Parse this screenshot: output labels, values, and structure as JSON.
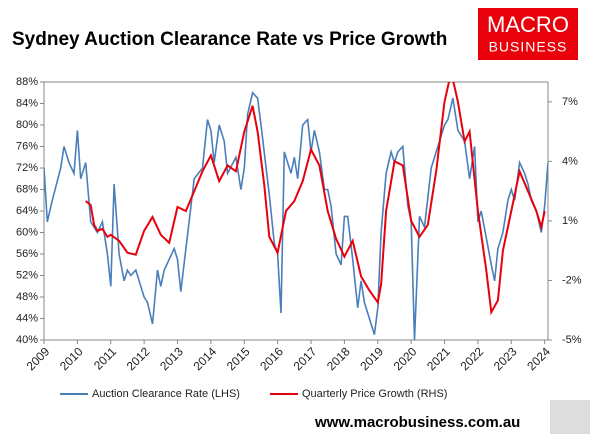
{
  "chart_data": {
    "type": "line",
    "title": "Sydney Auction Clearance Rate vs Price Growth",
    "logo": [
      "MACRO",
      "BUSINESS"
    ],
    "footer": "www.macrobusiness.com.au",
    "xlim": [
      2009,
      2024.1
    ],
    "xticks": [
      2009,
      2010,
      2011,
      2012,
      2013,
      2014,
      2015,
      2016,
      2017,
      2018,
      2019,
      2020,
      2021,
      2022,
      2023,
      2024
    ],
    "ylim": [
      40,
      88
    ],
    "yticks": [
      {
        "value": 40,
        "label": "40%"
      },
      {
        "value": 44,
        "label": "44%"
      },
      {
        "value": 48,
        "label": "48%"
      },
      {
        "value": 52,
        "label": "52%"
      },
      {
        "value": 56,
        "label": "56%"
      },
      {
        "value": 60,
        "label": "60%"
      },
      {
        "value": 64,
        "label": "64%"
      },
      {
        "value": 68,
        "label": "68%"
      },
      {
        "value": 72,
        "label": "72%"
      },
      {
        "value": 76,
        "label": "76%"
      },
      {
        "value": 80,
        "label": "80%"
      },
      {
        "value": 84,
        "label": "84%"
      },
      {
        "value": 88,
        "label": "88%"
      }
    ],
    "y2lim": [
      -5,
      8
    ],
    "y2ticks": [
      {
        "value": -5,
        "label": "-5%"
      },
      {
        "value": -2,
        "label": "-2%"
      },
      {
        "value": 1,
        "label": "1%"
      },
      {
        "value": 4,
        "label": "4%"
      },
      {
        "value": 7,
        "label": "7%"
      }
    ],
    "legend": "bottom",
    "series": [
      {
        "name": "Auction Clearance Rate (LHS)",
        "color": "#4a7ebb",
        "axis": "y",
        "x": [
          2009.0,
          2009.1,
          2009.25,
          2009.5,
          2009.6,
          2009.75,
          2009.9,
          2010.0,
          2010.1,
          2010.25,
          2010.4,
          2010.6,
          2010.75,
          2010.9,
          2011.0,
          2011.1,
          2011.25,
          2011.4,
          2011.5,
          2011.6,
          2011.75,
          2011.9,
          2012.0,
          2012.1,
          2012.25,
          2012.4,
          2012.5,
          2012.6,
          2012.75,
          2012.9,
          2013.0,
          2013.1,
          2013.25,
          2013.5,
          2013.75,
          2013.9,
          2014.0,
          2014.1,
          2014.25,
          2014.4,
          2014.5,
          2014.75,
          2014.9,
          2015.0,
          2015.1,
          2015.25,
          2015.4,
          2015.5,
          2015.75,
          2015.9,
          2016.0,
          2016.1,
          2016.2,
          2016.4,
          2016.5,
          2016.6,
          2016.75,
          2016.9,
          2017.0,
          2017.1,
          2017.25,
          2017.4,
          2017.5,
          2017.6,
          2017.75,
          2017.9,
          2018.0,
          2018.1,
          2018.25,
          2018.4,
          2018.5,
          2018.6,
          2018.75,
          2018.9,
          2019.0,
          2019.1,
          2019.25,
          2019.4,
          2019.5,
          2019.6,
          2019.75,
          2019.9,
          2020.0,
          2020.1,
          2020.25,
          2020.4,
          2020.6,
          2020.75,
          2020.9,
          2021.0,
          2021.1,
          2021.25,
          2021.4,
          2021.6,
          2021.75,
          2021.9,
          2022.0,
          2022.1,
          2022.25,
          2022.4,
          2022.5,
          2022.6,
          2022.75,
          2022.9,
          2023.0,
          2023.1,
          2023.25,
          2023.4,
          2023.5,
          2023.6,
          2023.75,
          2023.9,
          2024.0,
          2024.1
        ],
        "values": [
          72,
          62,
          66,
          72,
          76,
          73,
          71,
          79,
          70,
          73,
          62,
          60,
          62,
          56,
          50,
          69,
          56,
          51,
          53,
          52,
          53,
          50,
          48,
          47,
          43,
          53,
          50,
          53,
          55,
          57,
          55,
          49,
          57,
          70,
          72,
          81,
          79,
          73,
          80,
          77,
          71,
          74,
          68,
          72,
          82,
          86,
          85,
          80,
          67,
          58,
          56,
          45,
          75,
          71,
          74,
          70,
          80,
          81,
          75,
          79,
          75,
          68,
          68,
          65,
          56,
          54,
          63,
          63,
          55,
          46,
          51,
          47,
          44,
          41,
          46,
          60,
          71,
          75,
          73,
          75,
          76,
          65,
          62,
          40,
          63,
          61,
          72,
          75,
          78,
          80,
          81,
          85,
          79,
          77,
          70,
          76,
          62,
          64,
          59,
          54,
          51,
          57,
          60,
          66,
          68,
          66,
          73,
          71,
          69,
          66,
          64,
          60,
          65,
          73
        ]
      },
      {
        "name": "Quarterly Price Growth (RHS)",
        "color": "#e8000b",
        "axis": "y2",
        "x": [
          2010.25,
          2010.4,
          2010.5,
          2010.6,
          2010.75,
          2010.9,
          2011.0,
          2011.25,
          2011.5,
          2011.75,
          2012.0,
          2012.25,
          2012.5,
          2012.75,
          2013.0,
          2013.25,
          2013.5,
          2013.75,
          2014.0,
          2014.25,
          2014.5,
          2014.75,
          2015.0,
          2015.25,
          2015.4,
          2015.6,
          2015.75,
          2016.0,
          2016.25,
          2016.5,
          2016.75,
          2017.0,
          2017.25,
          2017.5,
          2017.75,
          2018.0,
          2018.25,
          2018.5,
          2018.75,
          2019.0,
          2019.1,
          2019.25,
          2019.5,
          2019.75,
          2020.0,
          2020.25,
          2020.5,
          2020.75,
          2021.0,
          2021.2,
          2021.4,
          2021.6,
          2021.75,
          2022.0,
          2022.25,
          2022.4,
          2022.6,
          2022.75,
          2023.0,
          2023.25,
          2023.5,
          2023.75,
          2023.9,
          2024.0
        ],
        "values": [
          2.0,
          1.8,
          0.8,
          0.5,
          0.6,
          0.2,
          0.3,
          0.0,
          -0.6,
          -0.7,
          0.5,
          1.2,
          0.3,
          -0.1,
          1.7,
          1.5,
          2.5,
          3.5,
          4.3,
          3.0,
          3.8,
          3.5,
          5.5,
          6.8,
          5.5,
          2.8,
          0.2,
          -0.6,
          1.5,
          2.0,
          3.0,
          4.6,
          3.8,
          1.5,
          0.1,
          -0.8,
          0.0,
          -1.8,
          -2.5,
          -3.1,
          -2.2,
          1.5,
          4.0,
          3.8,
          1.0,
          0.2,
          0.8,
          3.5,
          7.0,
          8.5,
          7.0,
          5.0,
          5.5,
          1.5,
          -1.5,
          -3.6,
          -3.0,
          -0.5,
          1.5,
          3.5,
          2.5,
          1.5,
          0.7,
          1.5
        ]
      }
    ]
  }
}
